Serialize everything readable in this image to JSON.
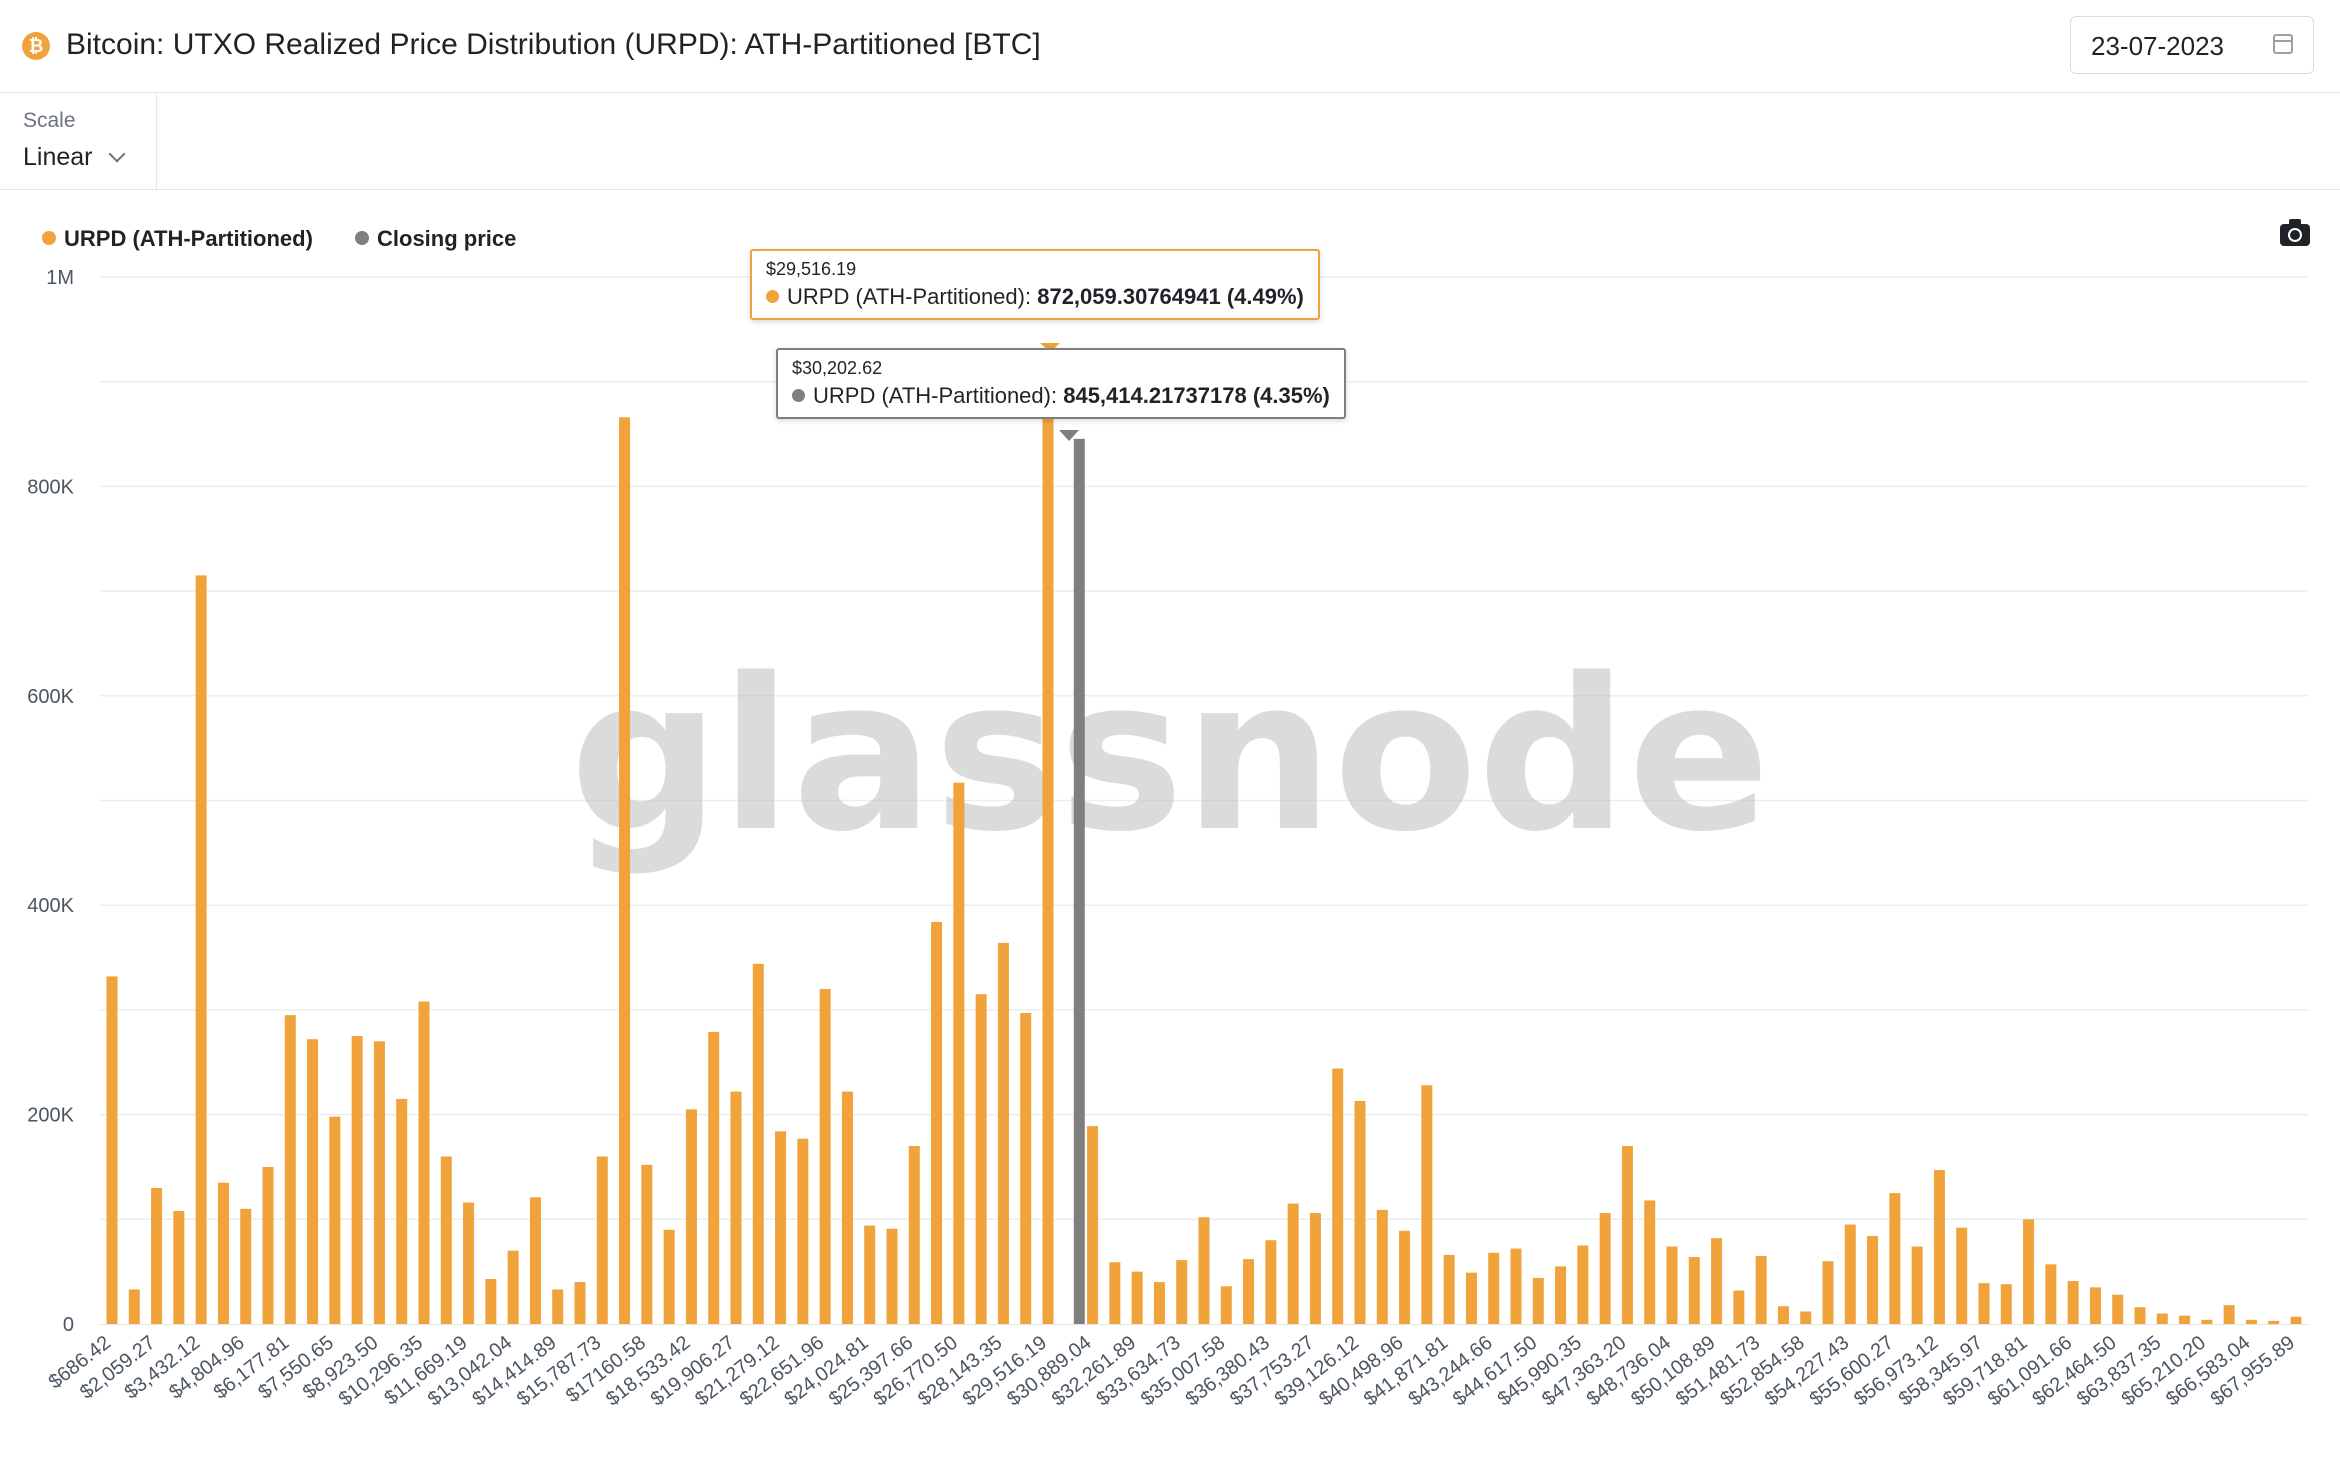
{
  "header": {
    "title": "Bitcoin: UTXO Realized Price Distribution (URPD): ATH-Partitioned [BTC]",
    "icon": "bitcoin-icon",
    "date": "23-07-2023"
  },
  "controls": {
    "scale_label": "Scale",
    "scale_value": "Linear"
  },
  "legend": [
    {
      "label": "URPD (ATH-Partitioned)",
      "color": "#f0a23b"
    },
    {
      "label": "Closing price",
      "color": "#7f7f7f"
    }
  ],
  "watermark": "glassnode",
  "tooltips": [
    {
      "date": "$29,516.19",
      "series": "URPD (ATH-Partitioned):",
      "value": "872,059.30764941 (4.49%)",
      "color": "#f0a23b"
    },
    {
      "date": "$30,202.62",
      "series": "URPD (ATH-Partitioned):",
      "value": "845,414.21737178 (4.35%)",
      "color": "#7f7f7f"
    }
  ],
  "chart_data": {
    "type": "bar",
    "ylim": [
      0,
      1000000
    ],
    "yticks": [
      {
        "value": 0,
        "label": "0"
      },
      {
        "value": 200000,
        "label": "200K"
      },
      {
        "value": 400000,
        "label": "400K"
      },
      {
        "value": 600000,
        "label": "600K"
      },
      {
        "value": 800000,
        "label": "800K"
      },
      {
        "value": 1000000,
        "label": "1M"
      }
    ],
    "xtick_labels": [
      "$686.42",
      "$2,059.27",
      "$3,432.12",
      "$4,804.96",
      "$6,177.81",
      "$7,550.65",
      "$8,923.50",
      "$10,296.35",
      "$11,669.19",
      "$13,042.04",
      "$14,414.89",
      "$15,787.73",
      "$17160.58",
      "$18,533.42",
      "$19,906.27",
      "$21,279.12",
      "$22,651.96",
      "$24,024.81",
      "$25,397.66",
      "$26,770.50",
      "$28,143.35",
      "$29,516.19",
      "$30,889.04",
      "$32,261.89",
      "$33,634.73",
      "$35,007.58",
      "$36,380.43",
      "$37,753.27",
      "$39,126.12",
      "$40,498.96",
      "$41,871.81",
      "$43,244.66",
      "$44,617.50",
      "$45,990.35",
      "$47,363.20",
      "$48,736.04",
      "$50,108.89",
      "$51,481.73",
      "$52,854.58",
      "$54,227.43",
      "$55,600.27",
      "$56,973.12",
      "$58,345.97",
      "$59,718.81",
      "$61,091.66",
      "$62,464.50",
      "$63,837.35",
      "$65,210.20",
      "$66,583.04",
      "$67,955.89"
    ],
    "series": [
      {
        "name": "URPD (ATH-Partitioned)",
        "color": "#f0a23b",
        "values": [
          332000,
          33000,
          130000,
          108000,
          715000,
          135000,
          110000,
          150000,
          295000,
          272000,
          198000,
          275000,
          270000,
          215000,
          308000,
          160000,
          116000,
          43000,
          70000,
          121000,
          33000,
          40000,
          160000,
          866000,
          152000,
          90000,
          205000,
          279000,
          222000,
          344000,
          184000,
          177000,
          320000,
          222000,
          94000,
          91000,
          170000,
          384000,
          517000,
          315000,
          364000,
          297000,
          872059,
          0,
          189000,
          59000,
          50000,
          40000,
          61000,
          102000,
          36000,
          62000,
          80000,
          115000,
          106000,
          244000,
          213000,
          109000,
          89000,
          228000,
          66000,
          49000,
          68000,
          72000,
          44000,
          55000,
          75000,
          106000,
          170000,
          118000,
          74000,
          64000,
          82000,
          32000,
          65000,
          17000,
          12000,
          60000,
          95000,
          84000,
          125000,
          74000,
          147000,
          92000,
          39000,
          38000,
          100000,
          57000,
          41000,
          35000,
          28000,
          16000,
          10000,
          8000,
          4000,
          18000,
          4000,
          3000,
          7000
        ]
      },
      {
        "name": "Closing price",
        "color": "#7f7f7f",
        "x_index": 43,
        "value": 845414
      }
    ]
  }
}
